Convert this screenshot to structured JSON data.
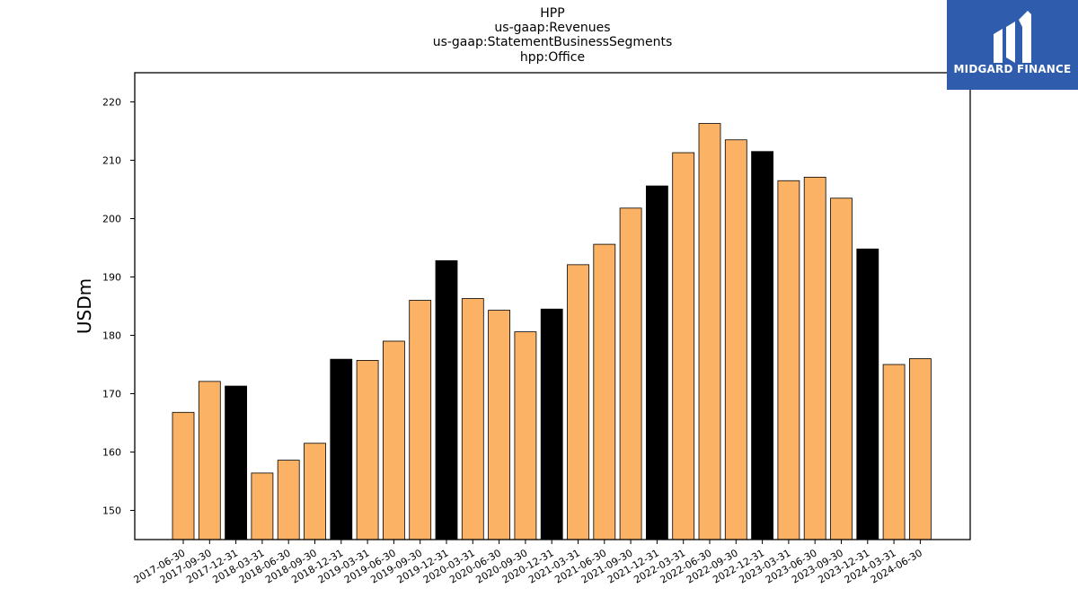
{
  "title_lines": [
    "HPP",
    "us-gaap:Revenues",
    "us-gaap:StatementBusinessSegments",
    "hpp:Office"
  ],
  "logo": {
    "text": "MIDGARD FINANCE",
    "color": "#2f5cad"
  },
  "chart_data": {
    "type": "bar",
    "title": "HPP\nus-gaap:Revenues\nus-gaap:StatementBusinessSegments\nhpp:Office",
    "xlabel": "",
    "ylabel": "USDm",
    "ylim": [
      145,
      225
    ],
    "yticks": [
      150,
      160,
      170,
      180,
      190,
      200,
      210,
      220
    ],
    "grid": false,
    "colors": {
      "quarter": "#fbb265",
      "year_end": "#000000",
      "edge": "#000000"
    },
    "categories": [
      "2017-06-30",
      "2017-09-30",
      "2017-12-31",
      "2018-03-31",
      "2018-06-30",
      "2018-09-30",
      "2018-12-31",
      "2019-03-31",
      "2019-06-30",
      "2019-09-30",
      "2019-12-31",
      "2020-03-31",
      "2020-06-30",
      "2020-09-30",
      "2020-12-31",
      "2021-03-31",
      "2021-06-30",
      "2021-09-30",
      "2021-12-31",
      "2022-03-31",
      "2022-06-30",
      "2022-09-30",
      "2022-12-31",
      "2023-03-31",
      "2023-06-30",
      "2023-09-30",
      "2023-12-31",
      "2024-03-31",
      "2024-06-30"
    ],
    "values": [
      166.8,
      172.1,
      171.3,
      156.4,
      158.6,
      161.5,
      175.9,
      175.7,
      179.0,
      186.0,
      192.8,
      186.3,
      184.3,
      180.6,
      184.5,
      192.1,
      195.6,
      201.8,
      205.6,
      211.3,
      216.3,
      213.5,
      211.5,
      206.5,
      207.1,
      203.5,
      194.8,
      175.0,
      176.0
    ]
  }
}
